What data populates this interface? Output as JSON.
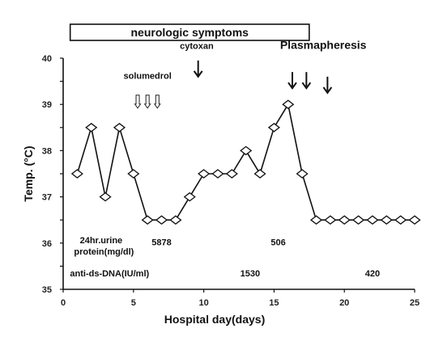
{
  "chart_data": {
    "type": "line",
    "xlabel": "Hospital day(days)",
    "ylabel": "Temp. (°C)",
    "xlim": [
      0,
      25
    ],
    "ylim": [
      35,
      40
    ],
    "xticks": [
      0,
      5,
      10,
      15,
      20,
      25
    ],
    "yticks": [
      35,
      35.5,
      36,
      36.5,
      37,
      37.5,
      38,
      38.5,
      39,
      39.5,
      40
    ],
    "ytick_labels": [
      "35",
      "",
      "36",
      "",
      "37",
      "",
      "38",
      "",
      "39",
      "",
      "40"
    ],
    "series": [
      {
        "marker": "diamond",
        "x": [
          1,
          2,
          3,
          4,
          5,
          6,
          7,
          8,
          9,
          10,
          11,
          12,
          13,
          14,
          15,
          16,
          17,
          18,
          19,
          20,
          21,
          22,
          23,
          24,
          25
        ],
        "y": [
          37.5,
          38.5,
          37.0,
          38.5,
          37.5,
          36.5,
          36.5,
          36.5,
          37.0,
          37.5,
          37.5,
          37.5,
          38.0,
          37.5,
          38.5,
          39.0,
          37.5,
          36.5,
          36.5,
          36.5,
          36.5,
          36.5,
          36.5,
          36.5,
          36.5
        ]
      }
    ],
    "banner": {
      "label": "neurologic symptoms",
      "x_start": 0.5,
      "x_end": 17.5
    },
    "annotations": [
      {
        "text": "solumedrol",
        "x": 6.0,
        "y": 39.55,
        "style": "small"
      },
      {
        "text": "cytoxan",
        "x": 9.5,
        "y": 40.2,
        "style": "small"
      },
      {
        "text": "Plasmapheresis",
        "x": 18.5,
        "y": 40.2,
        "style": "large"
      },
      {
        "text": "24hr.urine",
        "x": 2.7,
        "y": 36.0,
        "style": "small"
      },
      {
        "text": "protein(mg/dl)",
        "x": 2.9,
        "y": 35.75,
        "style": "small"
      },
      {
        "text": "5878",
        "x": 7.0,
        "y": 35.95,
        "style": "small"
      },
      {
        "text": "506",
        "x": 15.3,
        "y": 35.95,
        "style": "small"
      },
      {
        "text": "anti-ds-DNA(IU/ml)",
        "x": 3.3,
        "y": 35.28,
        "style": "small"
      },
      {
        "text": "1530",
        "x": 13.3,
        "y": 35.28,
        "style": "small"
      },
      {
        "text": "420",
        "x": 22.0,
        "y": 35.28,
        "style": "small"
      }
    ],
    "arrows": [
      {
        "x": 5.3,
        "y_top": 39.2,
        "y_bottom": 38.92,
        "style": "hollow"
      },
      {
        "x": 6.0,
        "y_top": 39.2,
        "y_bottom": 38.92,
        "style": "hollow"
      },
      {
        "x": 6.7,
        "y_top": 39.2,
        "y_bottom": 38.92,
        "style": "hollow"
      },
      {
        "x": 9.6,
        "y_top": 39.95,
        "y_bottom": 39.6,
        "style": "solid"
      },
      {
        "x": 16.3,
        "y_top": 39.7,
        "y_bottom": 39.35,
        "style": "solid"
      },
      {
        "x": 17.3,
        "y_top": 39.7,
        "y_bottom": 39.35,
        "style": "solid"
      },
      {
        "x": 18.8,
        "y_top": 39.6,
        "y_bottom": 39.25,
        "style": "solid"
      }
    ],
    "grid": false,
    "legend": "none"
  }
}
